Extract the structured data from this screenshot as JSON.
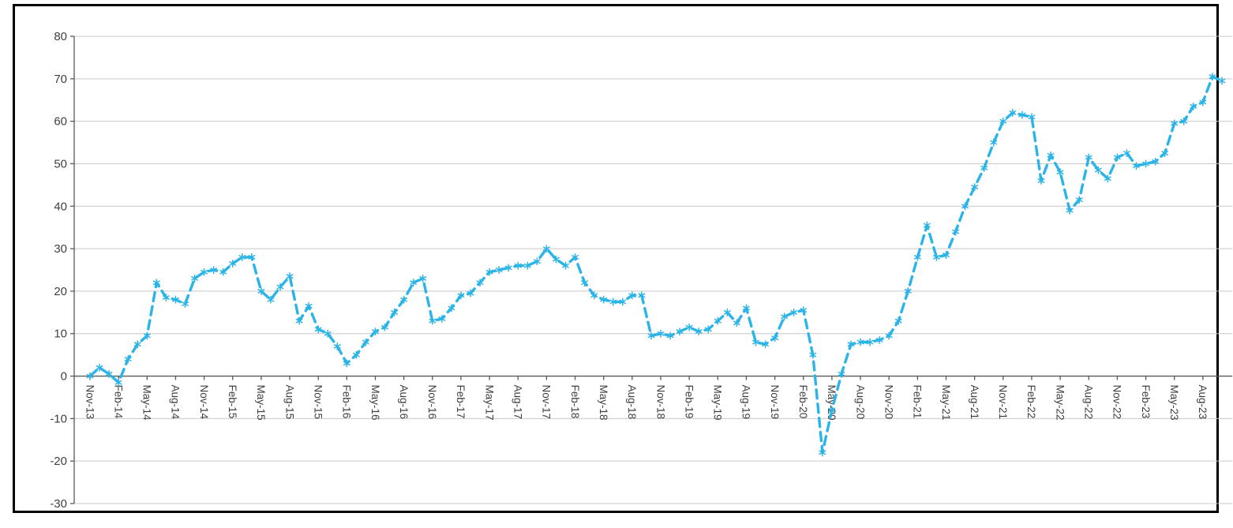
{
  "chart_data": {
    "type": "line",
    "title": "",
    "xlabel": "",
    "ylabel": "",
    "legend_position": "none",
    "grid": true,
    "line_style": "dashed",
    "marker": "star",
    "line_color": "#2ab4e8",
    "grid_color": "#c9c9c9",
    "axis_color": "#595959",
    "label_color": "#3f3f3f",
    "frame_color": "#000000",
    "ylim": [
      -30,
      80
    ],
    "y_ticks": [
      -30,
      -20,
      -10,
      0,
      10,
      20,
      30,
      40,
      50,
      60,
      70,
      80
    ],
    "x_tick_every": 3,
    "x_tick_labels": [
      "Nov-13",
      "Feb-14",
      "May-14",
      "Aug-14",
      "Nov-14",
      "Feb-15",
      "May-15",
      "Aug-15",
      "Nov-15",
      "Feb-16",
      "May-16",
      "Aug-16",
      "Nov-16",
      "Feb-17",
      "May-17",
      "Aug-17",
      "Nov-17",
      "Feb-18",
      "May-18",
      "Aug-18",
      "Nov-18",
      "Feb-19",
      "May-19",
      "Aug-19",
      "Nov-19",
      "Feb-20",
      "May-20",
      "Aug-20",
      "Nov-20",
      "Feb-21",
      "May-21",
      "Aug-21",
      "Nov-21",
      "Feb-22",
      "May-22",
      "Aug-22",
      "Nov-22",
      "Feb-23",
      "May-23",
      "Aug-23"
    ],
    "months": [
      "Nov-13",
      "Dec-13",
      "Jan-14",
      "Feb-14",
      "Mar-14",
      "Apr-14",
      "May-14",
      "Jun-14",
      "Jul-14",
      "Aug-14",
      "Sep-14",
      "Oct-14",
      "Nov-14",
      "Dec-14",
      "Jan-15",
      "Feb-15",
      "Mar-15",
      "Apr-15",
      "May-15",
      "Jun-15",
      "Jul-15",
      "Aug-15",
      "Sep-15",
      "Oct-15",
      "Nov-15",
      "Dec-15",
      "Jan-16",
      "Feb-16",
      "Mar-16",
      "Apr-16",
      "May-16",
      "Jun-16",
      "Jul-16",
      "Aug-16",
      "Sep-16",
      "Oct-16",
      "Nov-16",
      "Dec-16",
      "Jan-17",
      "Feb-17",
      "Mar-17",
      "Apr-17",
      "May-17",
      "Jun-17",
      "Jul-17",
      "Aug-17",
      "Sep-17",
      "Oct-17",
      "Nov-17",
      "Dec-17",
      "Jan-18",
      "Feb-18",
      "Mar-18",
      "Apr-18",
      "May-18",
      "Jun-18",
      "Jul-18",
      "Aug-18",
      "Sep-18",
      "Oct-18",
      "Nov-18",
      "Dec-18",
      "Jan-19",
      "Feb-19",
      "Mar-19",
      "Apr-19",
      "May-19",
      "Jun-19",
      "Jul-19",
      "Aug-19",
      "Sep-19",
      "Oct-19",
      "Nov-19",
      "Dec-19",
      "Jan-20",
      "Feb-20",
      "Mar-20",
      "Apr-20",
      "May-20",
      "Jun-20",
      "Jul-20",
      "Aug-20",
      "Sep-20",
      "Oct-20",
      "Nov-20",
      "Dec-20",
      "Jan-21",
      "Feb-21",
      "Mar-21",
      "Apr-21",
      "May-21",
      "Jun-21",
      "Jul-21",
      "Aug-21",
      "Sep-21",
      "Oct-21",
      "Nov-21",
      "Dec-21",
      "Jan-22",
      "Feb-22",
      "Mar-22",
      "Apr-22",
      "May-22",
      "Jun-22",
      "Jul-22",
      "Aug-22",
      "Sep-22",
      "Oct-22",
      "Nov-22",
      "Dec-22",
      "Jan-23",
      "Feb-23",
      "Mar-23",
      "Apr-23",
      "May-23",
      "Jun-23",
      "Jul-23",
      "Aug-23",
      "Sep-23",
      "Oct-23"
    ],
    "values": [
      0,
      2,
      0.5,
      -1.5,
      4,
      7.5,
      9.5,
      22,
      18.5,
      18,
      17,
      23,
      24.5,
      25,
      24.5,
      26.5,
      28,
      28,
      20,
      18,
      21,
      23.5,
      13,
      16.5,
      11,
      10,
      7,
      3,
      5,
      8,
      10.5,
      11.5,
      15,
      18,
      22,
      23,
      13,
      13.5,
      16,
      19,
      19.5,
      22,
      24.5,
      25,
      25.5,
      26,
      26,
      27,
      30,
      27.5,
      26,
      28,
      22,
      19,
      18,
      17.5,
      17.5,
      19,
      19,
      9.5,
      10,
      9.5,
      10.5,
      11.5,
      10.5,
      11,
      13,
      15,
      12.5,
      16,
      8,
      7.5,
      9,
      14,
      15,
      15.5,
      5,
      -18,
      -8,
      0.5,
      7.5,
      8,
      8,
      8.5,
      9.5,
      13,
      20,
      28,
      35.5,
      28,
      28.5,
      34,
      40,
      44.5,
      49,
      55,
      60,
      62,
      61.5,
      61,
      46,
      52,
      48,
      39,
      41.5,
      51.5,
      48.5,
      46.5,
      51.5,
      52.5,
      49.5,
      50,
      50.5,
      52.5,
      59.5,
      60,
      63.5,
      64.5,
      70.5,
      69.5
    ]
  }
}
